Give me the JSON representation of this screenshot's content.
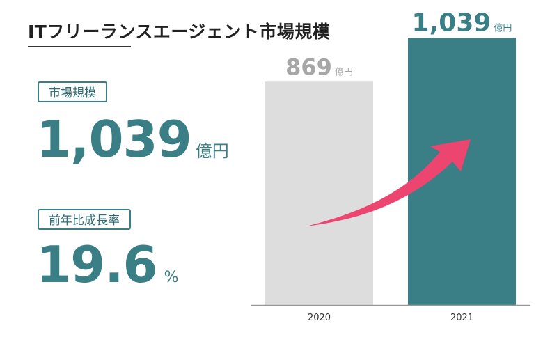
{
  "title": "ITフリーランスエージェント市場規模",
  "market": {
    "label": "市場規模",
    "value": "1,039",
    "unit": "億円"
  },
  "growth": {
    "label": "前年比成長率",
    "value": "19.6",
    "unit": "%"
  },
  "colors": {
    "teal": "#3a7f85",
    "gray_bar": "#dddddd",
    "gray_text": "#a6a6a6",
    "arrow": "#ec4670"
  },
  "chart_data": {
    "type": "bar",
    "categories": [
      "2020",
      "2021"
    ],
    "values": [
      869,
      1039
    ],
    "value_labels": [
      "869",
      "1,039"
    ],
    "unit": "億円",
    "ylim": [
      0,
      1100
    ],
    "grid": false,
    "annotation": "growth-arrow"
  }
}
